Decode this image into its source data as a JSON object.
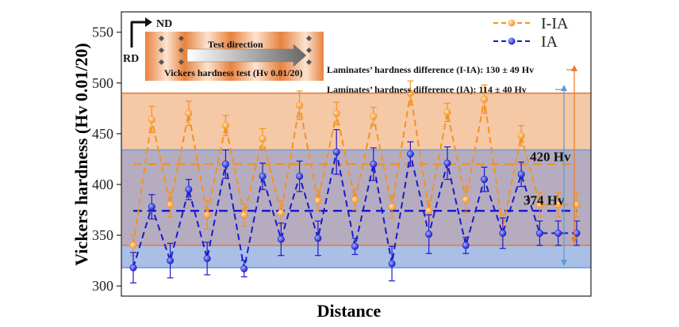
{
  "colors": {
    "iia": "#f5921e",
    "ia": "#1a1acc",
    "band_iia": "#f5c8a6",
    "band_ia": "#a9bfe6",
    "band_overlap": "#b6acbf",
    "band_border_iia": "#e87a2b",
    "band_border_ia": "#6c9ad6",
    "arrow_iia": "#e87a2b",
    "arrow_ia": "#5b9bd5"
  },
  "chart_data": {
    "type": "line",
    "xlabel": "Distance",
    "ylabel": "Vickers hardness (Hv 0.01/20)",
    "ylim": [
      290,
      570
    ],
    "yticks": [
      300,
      350,
      400,
      450,
      500,
      550
    ],
    "ytick_labels": [
      "300",
      "350",
      "400",
      "450",
      "500",
      "550"
    ],
    "grid": false,
    "legend_position": "top-right",
    "x": [
      1,
      2,
      3,
      4,
      5,
      6,
      7,
      8,
      9,
      10,
      11,
      12,
      13,
      14,
      15,
      16,
      17,
      18,
      19,
      20,
      21,
      22,
      23,
      24,
      25
    ],
    "series": [
      {
        "name": "I-IA",
        "color_key": "iia",
        "line_style": "dashed",
        "values": [
          340,
          464,
          380,
          470,
          370,
          458,
          370,
          445,
          372,
          478,
          384,
          470,
          385,
          467,
          378,
          490,
          374,
          471,
          385,
          484,
          358,
          448,
          380,
          380,
          380
        ],
        "errors": [
          10,
          13,
          12,
          12,
          14,
          10,
          11,
          10,
          12,
          14,
          10,
          11,
          10,
          9,
          11,
          12,
          10,
          9,
          13,
          14,
          12,
          10,
          12,
          12,
          12
        ]
      },
      {
        "name": "IA",
        "color_key": "ia",
        "line_style": "dashed",
        "values": [
          318,
          378,
          325,
          395,
          327,
          420,
          317,
          408,
          346,
          408,
          347,
          432,
          339,
          420,
          322,
          430,
          351,
          421,
          340,
          405,
          352,
          410,
          352,
          352,
          352
        ],
        "errors": [
          15,
          12,
          17,
          10,
          16,
          14,
          8,
          13,
          16,
          15,
          17,
          22,
          8,
          16,
          17,
          12,
          19,
          16,
          8,
          12,
          15,
          12,
          12,
          12,
          12
        ]
      }
    ],
    "reference_lines": [
      {
        "series": "I-IA",
        "value": 420,
        "label": "420 Hv"
      },
      {
        "series": "IA",
        "value": 374,
        "label": "374 Hv"
      }
    ],
    "bands": [
      {
        "series": "I-IA",
        "range": [
          340,
          490
        ]
      },
      {
        "series": "IA",
        "range": [
          318,
          434
        ]
      }
    ],
    "annotations": [
      {
        "text": "Laminates’ hardness difference (I-IA):  130 ± 49 Hv"
      },
      {
        "text": "Laminates’ hardness difference (IA):  114 ± 40 Hv"
      }
    ]
  },
  "inset": {
    "nd_label": "ND",
    "rd_label": "RD",
    "test_direction": "Test direction",
    "test_name": "Vickers hardness test (Hv 0.01/20)"
  }
}
